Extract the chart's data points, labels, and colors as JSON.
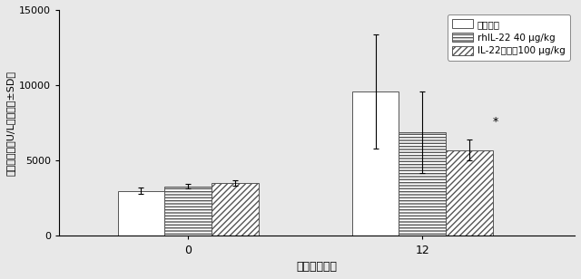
{
  "groups": [
    "0",
    "12"
  ],
  "group_positions": [
    0,
    1
  ],
  "bar_width": 0.2,
  "series": [
    {
      "label": "モデル群",
      "values": [
        3000,
        9600
      ],
      "errors": [
        200,
        3800
      ],
      "facecolor": "white",
      "edgecolor": "#555555",
      "hatch": null
    },
    {
      "label": "rhIL-22 40 μg/kg",
      "values": [
        3300,
        6900
      ],
      "errors": [
        150,
        2700
      ],
      "facecolor": "white",
      "edgecolor": "#555555",
      "hatch": "-----"
    },
    {
      "label": "IL-22二量体100 μg/kg",
      "values": [
        3500,
        5700
      ],
      "errors": [
        170,
        700
      ],
      "facecolor": "white",
      "edgecolor": "#555555",
      "hatch": "/////"
    }
  ],
  "ylabel": "アミラーゼ（U/L）（平均±SD）",
  "xlabel": "時間（時間）",
  "ylim": [
    0,
    15000
  ],
  "yticks": [
    0,
    5000,
    10000,
    15000
  ],
  "star_annotation": "*",
  "background_color": "#e8e8e8",
  "plot_bg_color": "#e8e8e8",
  "legend_loc": "upper right",
  "figsize": [
    6.4,
    3.08
  ],
  "dpi": 100
}
